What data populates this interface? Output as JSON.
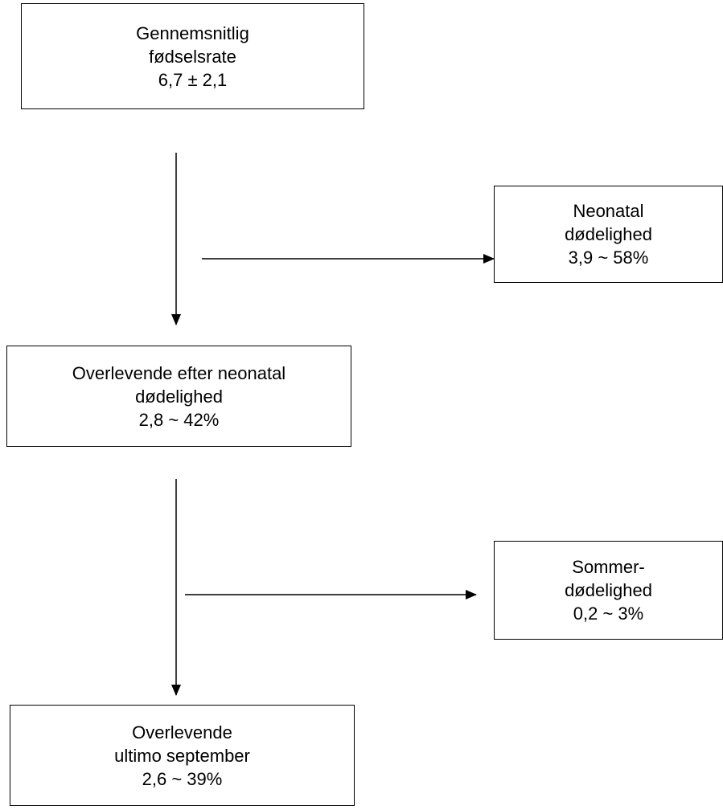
{
  "boxes": {
    "birth_rate": {
      "line1": "Gennemsnitlig",
      "line2": "fødselsrate",
      "line3": "6,7 ± 2,1"
    },
    "neonatal_mortality": {
      "line1": "Neonatal",
      "line2": "dødelighed",
      "line3": "3,9 ~ 58%"
    },
    "survivors_after_neonatal": {
      "line1": "Overlevende efter neonatal",
      "line2": "dødelighed",
      "line3": "2,8 ~ 42%"
    },
    "summer_mortality": {
      "line1": "Sommer-",
      "line2": "dødelighed",
      "line3": "0,2 ~ 3%"
    },
    "survivors_end_september": {
      "line1": "Overlevende",
      "line2": "ultimo september",
      "line3": "2,6 ~ 39%"
    }
  }
}
